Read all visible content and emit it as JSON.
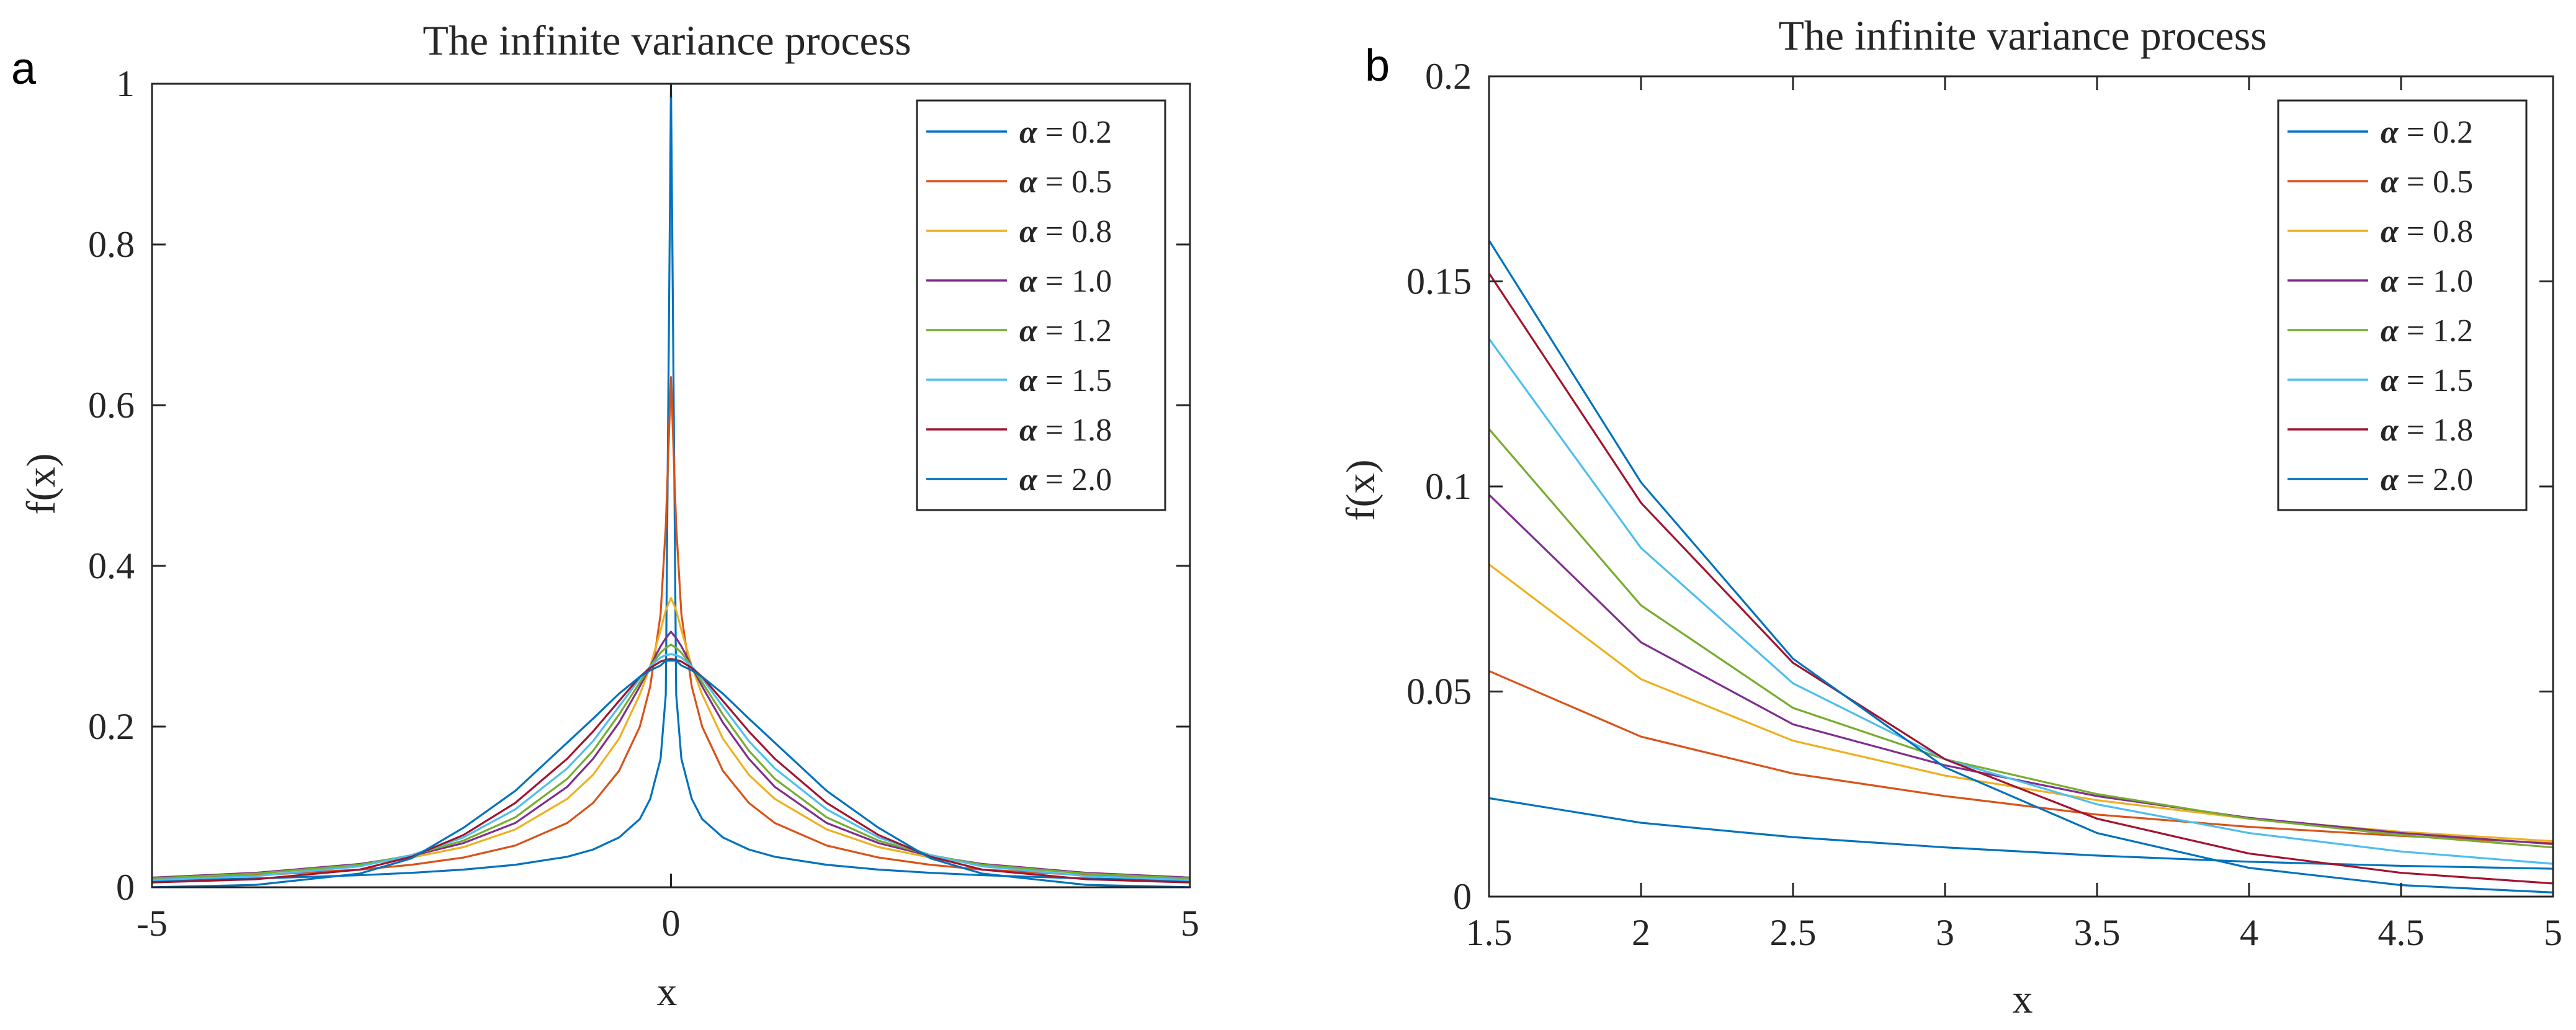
{
  "panel_labels": [
    "a",
    "b"
  ],
  "chart_data": [
    {
      "type": "line",
      "title": "The infinite variance process",
      "xlabel": "x",
      "ylabel": "f(x)",
      "xlim": [
        -5,
        5
      ],
      "ylim": [
        0,
        1
      ],
      "xticks": [
        -5,
        0,
        5
      ],
      "xtick_labels": [
        "-5",
        "0",
        "5"
      ],
      "yticks": [
        0,
        0.2,
        0.4,
        0.6,
        0.8,
        1
      ],
      "ytick_labels": [
        "0",
        "0.2",
        "0.4",
        "0.6",
        "0.8",
        "1"
      ],
      "grid": false,
      "legend_position": "top-right",
      "x": [
        -5,
        -4,
        -3,
        -2.5,
        -2,
        -1.5,
        -1,
        -0.75,
        -0.5,
        -0.3,
        -0.2,
        -0.1,
        -0.05,
        0,
        0.05,
        0.1,
        0.2,
        0.3,
        0.5,
        0.75,
        1,
        1.5,
        2,
        2.5,
        3,
        4,
        5
      ],
      "series": [
        {
          "name": "= 0.2",
          "color": "#0072BD",
          "values": [
            0.008,
            0.011,
            0.015,
            0.018,
            0.022,
            0.028,
            0.038,
            0.047,
            0.062,
            0.085,
            0.11,
            0.16,
            0.24,
            1.0,
            0.24,
            0.16,
            0.11,
            0.085,
            0.062,
            0.047,
            0.038,
            0.028,
            0.022,
            0.018,
            0.015,
            0.011,
            0.008
          ]
        },
        {
          "name": "= 0.5",
          "color": "#D95319",
          "values": [
            0.01,
            0.015,
            0.022,
            0.028,
            0.037,
            0.052,
            0.08,
            0.105,
            0.145,
            0.2,
            0.25,
            0.34,
            0.45,
            0.635,
            0.45,
            0.34,
            0.25,
            0.2,
            0.145,
            0.105,
            0.08,
            0.052,
            0.037,
            0.028,
            0.022,
            0.015,
            0.01
          ]
        },
        {
          "name": "= 0.8",
          "color": "#EDB120",
          "values": [
            0.012,
            0.018,
            0.028,
            0.037,
            0.05,
            0.072,
            0.11,
            0.14,
            0.185,
            0.24,
            0.275,
            0.32,
            0.345,
            0.36,
            0.345,
            0.32,
            0.275,
            0.24,
            0.185,
            0.14,
            0.11,
            0.072,
            0.05,
            0.037,
            0.028,
            0.018,
            0.012
          ]
        },
        {
          "name": "= 1.0",
          "color": "#7E2F8E",
          "values": [
            0.012,
            0.018,
            0.029,
            0.039,
            0.055,
            0.08,
            0.125,
            0.16,
            0.205,
            0.25,
            0.275,
            0.3,
            0.31,
            0.318,
            0.31,
            0.3,
            0.275,
            0.25,
            0.205,
            0.16,
            0.125,
            0.08,
            0.055,
            0.039,
            0.029,
            0.018,
            0.012
          ]
        },
        {
          "name": "= 1.2",
          "color": "#77AC30",
          "values": [
            0.011,
            0.017,
            0.028,
            0.04,
            0.058,
            0.087,
            0.135,
            0.17,
            0.215,
            0.255,
            0.275,
            0.292,
            0.298,
            0.302,
            0.298,
            0.292,
            0.275,
            0.255,
            0.215,
            0.17,
            0.135,
            0.087,
            0.058,
            0.04,
            0.028,
            0.017,
            0.011
          ]
        },
        {
          "name": "= 1.5",
          "color": "#4DBEEE",
          "values": [
            0.009,
            0.014,
            0.026,
            0.04,
            0.062,
            0.097,
            0.148,
            0.182,
            0.225,
            0.26,
            0.275,
            0.286,
            0.289,
            0.29,
            0.289,
            0.286,
            0.275,
            0.26,
            0.225,
            0.182,
            0.148,
            0.097,
            0.062,
            0.04,
            0.026,
            0.014,
            0.009
          ]
        },
        {
          "name": "= 1.8",
          "color": "#A2142F",
          "values": [
            0.006,
            0.01,
            0.022,
            0.038,
            0.065,
            0.105,
            0.16,
            0.194,
            0.232,
            0.262,
            0.273,
            0.281,
            0.283,
            0.284,
            0.283,
            0.281,
            0.273,
            0.262,
            0.232,
            0.194,
            0.16,
            0.105,
            0.065,
            0.038,
            0.022,
            0.01,
            0.006
          ]
        },
        {
          "name": "= 2.0",
          "color": "#0072BD",
          "values": [
            0.0001,
            0.003,
            0.017,
            0.036,
            0.074,
            0.12,
            0.18,
            0.21,
            0.241,
            0.262,
            0.27,
            0.276,
            0.282,
            0.282,
            0.282,
            0.276,
            0.27,
            0.262,
            0.241,
            0.21,
            0.18,
            0.12,
            0.074,
            0.036,
            0.017,
            0.003,
            0.0001
          ]
        }
      ]
    },
    {
      "type": "line",
      "title": "The infinite variance process",
      "xlabel": "x",
      "ylabel": "f(x)",
      "xlim": [
        1.5,
        5
      ],
      "ylim": [
        0,
        0.2
      ],
      "xticks": [
        1.5,
        2,
        2.5,
        3,
        3.5,
        4,
        4.5,
        5
      ],
      "xtick_labels": [
        "1.5",
        "2",
        "2.5",
        "3",
        "3.5",
        "4",
        "4.5",
        "5"
      ],
      "yticks": [
        0,
        0.05,
        0.1,
        0.15,
        0.2
      ],
      "ytick_labels": [
        "0",
        "0.05",
        "0.1",
        "0.15",
        "0.2"
      ],
      "grid": false,
      "legend_position": "top-right",
      "x": [
        1.5,
        2,
        2.5,
        3,
        3.5,
        4,
        4.5,
        5
      ],
      "series": [
        {
          "name": "= 0.2",
          "color": "#0072BD",
          "values": [
            0.024,
            0.018,
            0.0145,
            0.012,
            0.01,
            0.0085,
            0.0075,
            0.0068
          ]
        },
        {
          "name": "= 0.5",
          "color": "#D95319",
          "values": [
            0.055,
            0.039,
            0.03,
            0.0245,
            0.02,
            0.017,
            0.0148,
            0.013
          ]
        },
        {
          "name": "= 0.8",
          "color": "#EDB120",
          "values": [
            0.081,
            0.053,
            0.038,
            0.0295,
            0.0235,
            0.019,
            0.0158,
            0.0135
          ]
        },
        {
          "name": "= 1.0",
          "color": "#7E2F8E",
          "values": [
            0.098,
            0.062,
            0.042,
            0.032,
            0.0245,
            0.0192,
            0.0155,
            0.0128
          ]
        },
        {
          "name": "= 1.2",
          "color": "#77AC30",
          "values": [
            0.114,
            0.071,
            0.046,
            0.0335,
            0.025,
            0.019,
            0.015,
            0.012
          ]
        },
        {
          "name": "= 1.5",
          "color": "#4DBEEE",
          "values": [
            0.136,
            0.085,
            0.052,
            0.0335,
            0.0225,
            0.0155,
            0.011,
            0.008
          ]
        },
        {
          "name": "= 1.8",
          "color": "#A2142F",
          "values": [
            0.152,
            0.096,
            0.057,
            0.0335,
            0.019,
            0.0105,
            0.0058,
            0.0032
          ]
        },
        {
          "name": "= 2.0",
          "color": "#0072BD",
          "values": [
            0.16,
            0.101,
            0.058,
            0.0315,
            0.0155,
            0.007,
            0.0028,
            0.001
          ]
        }
      ]
    }
  ]
}
